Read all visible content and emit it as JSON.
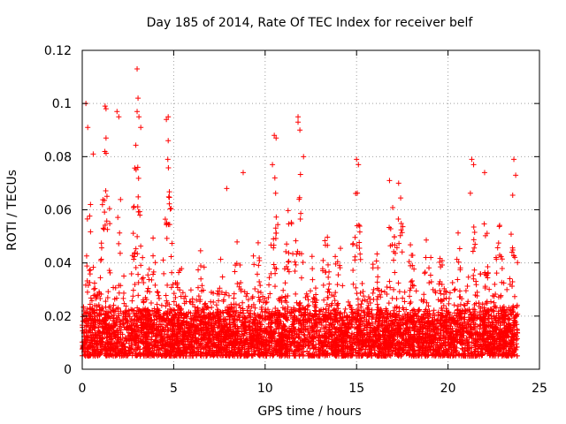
{
  "chart_data": {
    "type": "scatter",
    "title": "Day 185 of 2014, Rate Of TEC Index for receiver belf",
    "xlabel": "GPS time / hours",
    "ylabel": "ROTI / TECUs",
    "xlim": [
      0,
      25
    ],
    "ylim": [
      0,
      0.12
    ],
    "xticks": [
      0,
      5,
      10,
      15,
      20,
      25
    ],
    "xtick_labels": [
      "0",
      "5",
      "10",
      "15",
      "20",
      "25"
    ],
    "yticks": [
      0,
      0.02,
      0.04,
      0.06,
      0.08,
      0.1,
      0.12
    ],
    "ytick_labels": [
      "0",
      "0.02",
      "0.04",
      "0.06",
      "0.08",
      "0.1",
      "0.12"
    ],
    "grid": true,
    "marker": "+",
    "color": "#ff0000",
    "x_data_range": [
      0,
      23.8
    ],
    "baseline_range": [
      0.005,
      0.02
    ],
    "notable_points": [
      {
        "x": 0.2,
        "y": 0.1
      },
      {
        "x": 0.3,
        "y": 0.091
      },
      {
        "x": 0.6,
        "y": 0.081
      },
      {
        "x": 1.25,
        "y": 0.099
      },
      {
        "x": 1.3,
        "y": 0.098
      },
      {
        "x": 1.3,
        "y": 0.087
      },
      {
        "x": 1.9,
        "y": 0.097
      },
      {
        "x": 2.0,
        "y": 0.095
      },
      {
        "x": 3.0,
        "y": 0.113
      },
      {
        "x": 3.05,
        "y": 0.102
      },
      {
        "x": 3.0,
        "y": 0.097
      },
      {
        "x": 3.1,
        "y": 0.095
      },
      {
        "x": 3.2,
        "y": 0.091
      },
      {
        "x": 4.6,
        "y": 0.094
      },
      {
        "x": 4.7,
        "y": 0.095
      },
      {
        "x": 4.7,
        "y": 0.086
      },
      {
        "x": 7.9,
        "y": 0.068
      },
      {
        "x": 8.8,
        "y": 0.074
      },
      {
        "x": 10.5,
        "y": 0.088
      },
      {
        "x": 10.6,
        "y": 0.087
      },
      {
        "x": 10.4,
        "y": 0.077
      },
      {
        "x": 11.8,
        "y": 0.095
      },
      {
        "x": 11.8,
        "y": 0.093
      },
      {
        "x": 11.9,
        "y": 0.09
      },
      {
        "x": 12.1,
        "y": 0.08
      },
      {
        "x": 15.0,
        "y": 0.079
      },
      {
        "x": 15.1,
        "y": 0.077
      },
      {
        "x": 16.8,
        "y": 0.071
      },
      {
        "x": 17.3,
        "y": 0.07
      },
      {
        "x": 21.3,
        "y": 0.079
      },
      {
        "x": 21.4,
        "y": 0.077
      },
      {
        "x": 22.0,
        "y": 0.074
      },
      {
        "x": 23.6,
        "y": 0.079
      },
      {
        "x": 23.7,
        "y": 0.073
      }
    ]
  }
}
